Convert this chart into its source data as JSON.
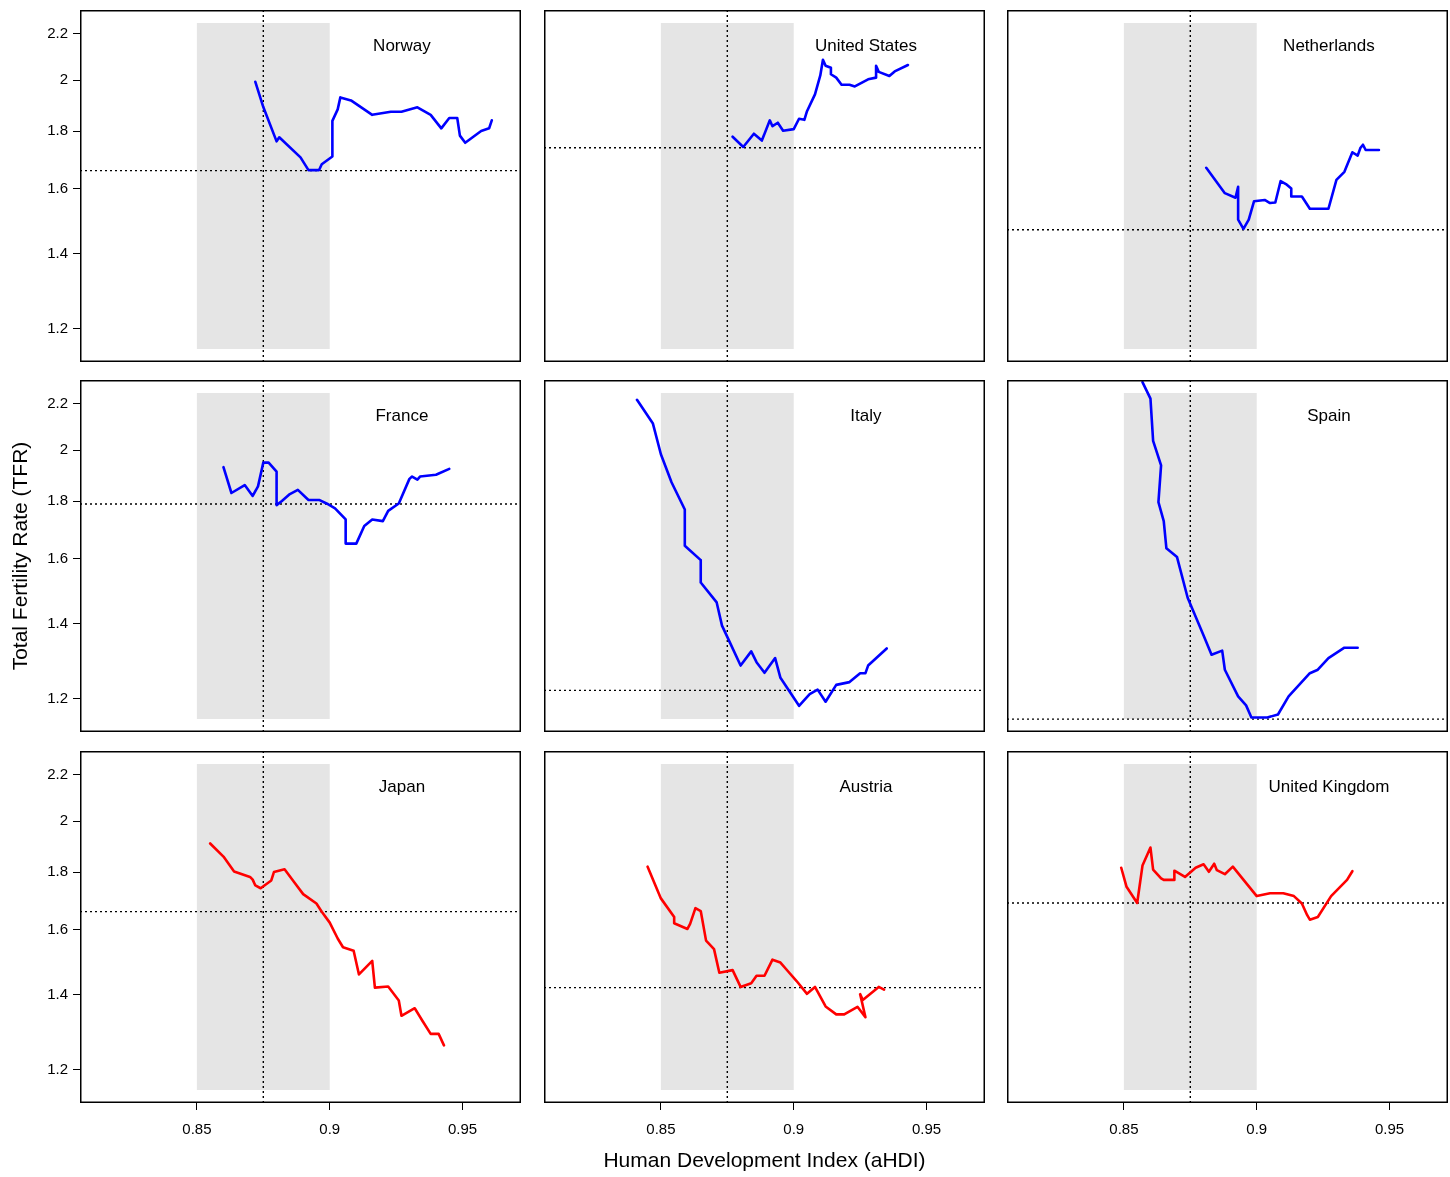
{
  "chart_data": [
    {
      "type": "line",
      "title": "Norway",
      "x": [
        0.872,
        0.875,
        0.88,
        0.881,
        0.889,
        0.892,
        0.896,
        0.897,
        0.901,
        0.901,
        0.903,
        0.904,
        0.908,
        0.916,
        0.923,
        0.927,
        0.933,
        0.938,
        0.942,
        0.945,
        0.948,
        0.949,
        0.951,
        0.957,
        0.96,
        0.961
      ],
      "values": [
        1.993,
        1.892,
        1.763,
        1.778,
        1.706,
        1.662,
        1.662,
        1.682,
        1.709,
        1.839,
        1.883,
        1.93,
        1.918,
        1.862,
        1.874,
        1.874,
        1.891,
        1.862,
        1.811,
        1.85,
        1.85,
        1.784,
        1.758,
        1.801,
        1.811,
        1.841
      ],
      "color": "#0000ff",
      "xlim": [
        0.806,
        0.972
      ],
      "xticks": [
        0.85,
        0.9,
        0.95
      ],
      "ylim": [
        1.12,
        2.31
      ],
      "yticks": [
        1.2,
        1.4,
        1.6,
        1.8,
        2,
        2.2
      ],
      "log": "y",
      "tick_labels": "y",
      "bands": [
        {
          "axis": "x",
          "from": 0.85,
          "to": 0.9,
          "color": "#e5e5e5"
        }
      ],
      "ref_lines": [
        {
          "axis": "x",
          "value": 0.875,
          "color": "#000000",
          "line_style": "dotted"
        },
        {
          "axis": "y",
          "value": 1.66,
          "color": "#000000",
          "line_style": "dotted"
        }
      ]
    },
    {
      "type": "line",
      "title": "United States",
      "x": [
        0.877,
        0.881,
        0.885,
        0.888,
        0.891,
        0.892,
        0.894,
        0.896,
        0.9,
        0.902,
        0.904,
        0.905,
        0.908,
        0.91,
        0.911,
        0.912,
        0.914,
        0.914,
        0.916,
        0.918,
        0.921,
        0.923,
        0.928,
        0.931,
        0.931,
        0.932,
        0.936,
        0.938,
        0.943
      ],
      "values": [
        1.78,
        1.743,
        1.791,
        1.766,
        1.841,
        1.819,
        1.832,
        1.802,
        1.808,
        1.847,
        1.843,
        1.876,
        1.942,
        2.019,
        2.085,
        2.06,
        2.051,
        2.024,
        2.01,
        1.981,
        1.981,
        1.974,
        2.003,
        2.01,
        2.06,
        2.034,
        2.017,
        2.036,
        2.063
      ],
      "color": "#0000ff",
      "xlim": [
        0.806,
        0.972
      ],
      "xticks": [
        0.85,
        0.9,
        0.95
      ],
      "ylim": [
        1.12,
        2.31
      ],
      "yticks": [
        1.2,
        1.4,
        1.6,
        1.8,
        2,
        2.2
      ],
      "log": "y",
      "tick_labels": false,
      "bands": [
        {
          "axis": "x",
          "from": 0.85,
          "to": 0.9,
          "color": "#e5e5e5"
        }
      ],
      "ref_lines": [
        {
          "axis": "x",
          "value": 0.875,
          "color": "#000000",
          "line_style": "dotted"
        },
        {
          "axis": "y",
          "value": 1.74,
          "color": "#000000",
          "line_style": "dotted"
        }
      ]
    },
    {
      "type": "line",
      "title": "Netherlands",
      "x": [
        0.881,
        0.888,
        0.892,
        0.893,
        0.893,
        0.895,
        0.897,
        0.899,
        0.903,
        0.905,
        0.907,
        0.909,
        0.911,
        0.913,
        0.913,
        0.917,
        0.92,
        0.927,
        0.93,
        0.933,
        0.936,
        0.938,
        0.939,
        0.94,
        0.941,
        0.946
      ],
      "values": [
        1.67,
        1.585,
        1.57,
        1.606,
        1.501,
        1.473,
        1.501,
        1.559,
        1.563,
        1.553,
        1.555,
        1.625,
        1.615,
        1.6,
        1.574,
        1.574,
        1.535,
        1.535,
        1.629,
        1.656,
        1.724,
        1.712,
        1.739,
        1.751,
        1.732,
        1.732
      ],
      "color": "#0000ff",
      "xlim": [
        0.806,
        0.972
      ],
      "xticks": [
        0.85,
        0.9,
        0.95
      ],
      "ylim": [
        1.12,
        2.31
      ],
      "yticks": [
        1.2,
        1.4,
        1.6,
        1.8,
        2,
        2.2
      ],
      "log": "y",
      "tick_labels": false,
      "bands": [
        {
          "axis": "x",
          "from": 0.85,
          "to": 0.9,
          "color": "#e5e5e5"
        }
      ],
      "ref_lines": [
        {
          "axis": "x",
          "value": 0.875,
          "color": "#000000",
          "line_style": "dotted"
        },
        {
          "axis": "y",
          "value": 1.47,
          "color": "#000000",
          "line_style": "dotted"
        }
      ]
    },
    {
      "type": "line",
      "title": "France",
      "ylabel": "Total Fertility Rate (TFR)",
      "x": [
        0.86,
        0.863,
        0.868,
        0.871,
        0.873,
        0.875,
        0.877,
        0.88,
        0.88,
        0.882,
        0.885,
        0.888,
        0.892,
        0.896,
        0.899,
        0.902,
        0.906,
        0.906,
        0.91,
        0.913,
        0.916,
        0.92,
        0.922,
        0.926,
        0.93,
        0.931,
        0.933,
        0.934,
        0.94,
        0.945
      ],
      "values": [
        1.931,
        1.831,
        1.861,
        1.82,
        1.856,
        1.949,
        1.949,
        1.913,
        1.786,
        1.801,
        1.827,
        1.843,
        1.805,
        1.805,
        1.791,
        1.774,
        1.734,
        1.65,
        1.65,
        1.711,
        1.734,
        1.728,
        1.765,
        1.792,
        1.885,
        1.894,
        1.882,
        1.894,
        1.901,
        1.924
      ],
      "color": "#0000ff",
      "xlim": [
        0.806,
        0.972
      ],
      "xticks": [
        0.85,
        0.9,
        0.95
      ],
      "ylim": [
        1.12,
        2.31
      ],
      "yticks": [
        1.2,
        1.4,
        1.6,
        1.8,
        2,
        2.2
      ],
      "log": "y",
      "tick_labels": "y",
      "bands": [
        {
          "axis": "x",
          "from": 0.85,
          "to": 0.9,
          "color": "#e5e5e5"
        }
      ],
      "ref_lines": [
        {
          "axis": "x",
          "value": 0.875,
          "color": "#000000",
          "line_style": "dotted"
        },
        {
          "axis": "y",
          "value": 1.79,
          "color": "#000000",
          "line_style": "dotted"
        }
      ]
    },
    {
      "type": "line",
      "title": "Italy",
      "x": [
        0.841,
        0.847,
        0.85,
        0.854,
        0.859,
        0.859,
        0.865,
        0.865,
        0.871,
        0.873,
        0.876,
        0.88,
        0.884,
        0.886,
        0.889,
        0.893,
        0.895,
        0.902,
        0.906,
        0.909,
        0.912,
        0.916,
        0.921,
        0.925,
        0.927,
        0.928,
        0.935
      ],
      "values": [
        2.218,
        2.112,
        1.983,
        1.872,
        1.77,
        1.643,
        1.595,
        1.523,
        1.462,
        1.394,
        1.346,
        1.284,
        1.322,
        1.293,
        1.265,
        1.304,
        1.252,
        1.182,
        1.211,
        1.222,
        1.192,
        1.234,
        1.241,
        1.264,
        1.264,
        1.284,
        1.33
      ],
      "color": "#0000ff",
      "xlim": [
        0.806,
        0.972
      ],
      "xticks": [
        0.85,
        0.9,
        0.95
      ],
      "ylim": [
        1.12,
        2.31
      ],
      "yticks": [
        1.2,
        1.4,
        1.6,
        1.8,
        2,
        2.2
      ],
      "log": "y",
      "tick_labels": false,
      "bands": [
        {
          "axis": "x",
          "from": 0.85,
          "to": 0.9,
          "color": "#e5e5e5"
        }
      ],
      "ref_lines": [
        {
          "axis": "x",
          "value": 0.875,
          "color": "#000000",
          "line_style": "dotted"
        },
        {
          "axis": "y",
          "value": 1.22,
          "color": "#000000",
          "line_style": "dotted"
        }
      ]
    },
    {
      "type": "line",
      "title": "Spain",
      "x": [
        0.857,
        0.86,
        0.861,
        0.864,
        0.863,
        0.865,
        0.866,
        0.87,
        0.874,
        0.88,
        0.883,
        0.887,
        0.888,
        0.893,
        0.896,
        0.898,
        0.904,
        0.908,
        0.912,
        0.92,
        0.923,
        0.927,
        0.933,
        0.938
      ],
      "values": [
        2.3,
        2.223,
        2.038,
        1.938,
        1.797,
        1.728,
        1.634,
        1.605,
        1.476,
        1.366,
        1.313,
        1.324,
        1.273,
        1.205,
        1.183,
        1.154,
        1.154,
        1.161,
        1.205,
        1.264,
        1.273,
        1.304,
        1.332,
        1.332
      ],
      "color": "#0000ff",
      "xlim": [
        0.806,
        0.972
      ],
      "xticks": [
        0.85,
        0.9,
        0.95
      ],
      "ylim": [
        1.12,
        2.31
      ],
      "yticks": [
        1.2,
        1.4,
        1.6,
        1.8,
        2,
        2.2
      ],
      "log": "y",
      "tick_labels": false,
      "bands": [
        {
          "axis": "x",
          "from": 0.85,
          "to": 0.9,
          "color": "#e5e5e5"
        }
      ],
      "ref_lines": [
        {
          "axis": "x",
          "value": 0.875,
          "color": "#000000",
          "line_style": "dotted"
        },
        {
          "axis": "y",
          "value": 1.15,
          "color": "#000000",
          "line_style": "dotted"
        }
      ]
    },
    {
      "type": "line",
      "title": "Japan",
      "x": [
        0.855,
        0.86,
        0.864,
        0.87,
        0.871,
        0.872,
        0.874,
        0.878,
        0.879,
        0.883,
        0.887,
        0.89,
        0.895,
        0.897,
        0.9,
        0.903,
        0.905,
        0.909,
        0.911,
        0.916,
        0.917,
        0.922,
        0.926,
        0.927,
        0.932,
        0.935,
        0.938,
        0.941,
        0.943
      ],
      "values": [
        1.91,
        1.859,
        1.803,
        1.783,
        1.773,
        1.752,
        1.742,
        1.77,
        1.801,
        1.811,
        1.759,
        1.721,
        1.688,
        1.66,
        1.623,
        1.571,
        1.543,
        1.532,
        1.459,
        1.5,
        1.42,
        1.423,
        1.383,
        1.34,
        1.361,
        1.325,
        1.291,
        1.291,
        1.261
      ],
      "color": "#ff0000",
      "xlim": [
        0.806,
        0.972
      ],
      "xticks": [
        0.85,
        0.9,
        0.95
      ],
      "ylim": [
        1.12,
        2.31
      ],
      "yticks": [
        1.2,
        1.4,
        1.6,
        1.8,
        2,
        2.2
      ],
      "log": "y",
      "bands": [
        {
          "axis": "x",
          "from": 0.85,
          "to": 0.9,
          "color": "#e5e5e5"
        }
      ],
      "ref_lines": [
        {
          "axis": "x",
          "value": 0.875,
          "color": "#000000",
          "line_style": "dotted"
        },
        {
          "axis": "y",
          "value": 1.66,
          "color": "#000000",
          "line_style": "dotted"
        }
      ]
    },
    {
      "type": "line",
      "title": "Austria",
      "xlabel": "Human Development Index (aHDI)",
      "x": [
        0.845,
        0.85,
        0.855,
        0.855,
        0.86,
        0.861,
        0.863,
        0.865,
        0.867,
        0.87,
        0.872,
        0.877,
        0.88,
        0.884,
        0.886,
        0.889,
        0.892,
        0.895,
        0.898,
        0.901,
        0.905,
        0.908,
        0.912,
        0.916,
        0.919,
        0.924,
        0.927,
        0.925,
        0.926,
        0.932,
        0.934
      ],
      "values": [
        1.821,
        1.706,
        1.642,
        1.621,
        1.602,
        1.619,
        1.672,
        1.662,
        1.564,
        1.537,
        1.464,
        1.472,
        1.422,
        1.433,
        1.455,
        1.455,
        1.504,
        1.495,
        1.467,
        1.44,
        1.402,
        1.422,
        1.366,
        1.344,
        1.344,
        1.365,
        1.336,
        1.401,
        1.384,
        1.422,
        1.414
      ],
      "color": "#ff0000",
      "xlim": [
        0.806,
        0.972
      ],
      "xticks": [
        0.85,
        0.9,
        0.95
      ],
      "ylim": [
        1.12,
        2.31
      ],
      "yticks": [
        1.2,
        1.4,
        1.6,
        1.8,
        2,
        2.2
      ],
      "log": "y",
      "tick_labels": "x",
      "bands": [
        {
          "axis": "x",
          "from": 0.85,
          "to": 0.9,
          "color": "#e5e5e5"
        }
      ],
      "ref_lines": [
        {
          "axis": "x",
          "value": 0.875,
          "color": "#000000",
          "line_style": "dotted"
        },
        {
          "axis": "y",
          "value": 1.42,
          "color": "#000000",
          "line_style": "dotted"
        }
      ]
    },
    {
      "type": "line",
      "title": "United Kingdom",
      "x": [
        0.849,
        0.851,
        0.855,
        0.857,
        0.86,
        0.861,
        0.864,
        0.865,
        0.869,
        0.869,
        0.873,
        0.877,
        0.88,
        0.882,
        0.884,
        0.885,
        0.888,
        0.891,
        0.9,
        0.905,
        0.91,
        0.914,
        0.917,
        0.919,
        0.92,
        0.923,
        0.928,
        0.934,
        0.936
      ],
      "values": [
        1.817,
        1.747,
        1.69,
        1.825,
        1.894,
        1.81,
        1.778,
        1.772,
        1.772,
        1.806,
        1.783,
        1.817,
        1.83,
        1.802,
        1.832,
        1.808,
        1.793,
        1.821,
        1.714,
        1.724,
        1.724,
        1.714,
        1.688,
        1.648,
        1.633,
        1.642,
        1.714,
        1.772,
        1.804
      ],
      "color": "#ff0000",
      "xlim": [
        0.806,
        0.972
      ],
      "xticks": [
        0.85,
        0.9,
        0.95
      ],
      "ylim": [
        1.12,
        2.31
      ],
      "yticks": [
        1.2,
        1.4,
        1.6,
        1.8,
        2,
        2.2
      ],
      "log": "y",
      "tick_labels": "x",
      "bands": [
        {
          "axis": "x",
          "from": 0.85,
          "to": 0.9,
          "color": "#e5e5e5"
        }
      ],
      "ref_lines": [
        {
          "axis": "x",
          "value": 0.875,
          "color": "#000000",
          "line_style": "dotted"
        },
        {
          "axis": "y",
          "value": 1.69,
          "color": "#000000",
          "line_style": "dotted"
        }
      ]
    }
  ]
}
